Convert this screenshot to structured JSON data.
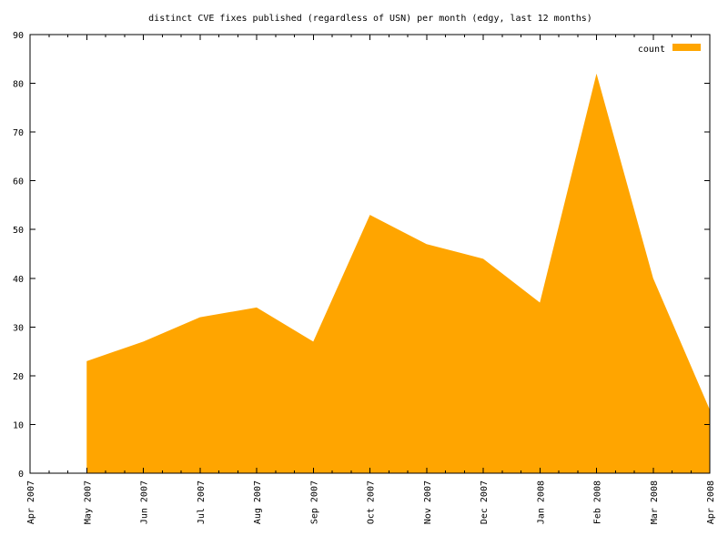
{
  "chart_data": {
    "type": "area",
    "title": "distinct CVE fixes published (regardless of USN) per month (edgy, last 12 months)",
    "xlabel": "",
    "ylabel": "",
    "x_ticks": [
      "Apr 2007",
      "May 2007",
      "Jun 2007",
      "Jul 2007",
      "Aug 2007",
      "Sep 2007",
      "Oct 2007",
      "Nov 2007",
      "Dec 2007",
      "Jan 2008",
      "Feb 2008",
      "Mar 2008",
      "Apr 2008"
    ],
    "y_ticks": [
      "0",
      "10",
      "20",
      "30",
      "40",
      "50",
      "60",
      "70",
      "80",
      "90"
    ],
    "ylim": [
      0,
      90
    ],
    "grid": false,
    "legend": {
      "placement": "top-right"
    },
    "series": [
      {
        "name": "count",
        "color": "#ffa500",
        "points": [
          {
            "x": "May 2007",
            "y": 23
          },
          {
            "x": "Jun 2007",
            "y": 27
          },
          {
            "x": "Jul 2007",
            "y": 32
          },
          {
            "x": "Aug 2007",
            "y": 34
          },
          {
            "x": "Sep 2007",
            "y": 27
          },
          {
            "x": "Oct 2007",
            "y": 53
          },
          {
            "x": "Nov 2007",
            "y": 47
          },
          {
            "x": "Dec 2007",
            "y": 44
          },
          {
            "x": "Jan 2008",
            "y": 35
          },
          {
            "x": "Feb 2008",
            "y": 82
          },
          {
            "x": "Mar 2008",
            "y": 40
          },
          {
            "x": "Apr 2008",
            "y": 13
          }
        ]
      }
    ]
  }
}
